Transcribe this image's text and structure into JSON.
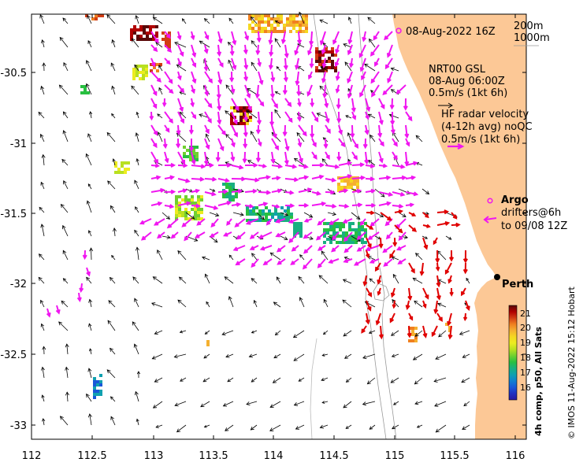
{
  "map": {
    "date_label": "08-Aug-2022 16Z",
    "isobath_labels": [
      "200m",
      "1000m"
    ],
    "x_ticks": [
      "112",
      "112.5",
      "113",
      "113.5",
      "114",
      "114.5",
      "115",
      "115.5",
      "116"
    ],
    "y_ticks": [
      "-30.5",
      "-31",
      "-31.5",
      "-32",
      "-32.5",
      "-33"
    ],
    "city_label": "Perth",
    "colors": {
      "land": "#fcc896",
      "current_arrows": "#000000",
      "hf_radar_arrows": "#f016f0",
      "argo_and_drifters": "#e00000",
      "isobath_lines": "#999999"
    }
  },
  "legend": {
    "nrt_lines": [
      "NRT00 GSL",
      "08-Aug 06:00Z",
      "0.5m/s (1kt 6h)"
    ],
    "hf_lines": [
      "HF radar velocity",
      "(4-12h avg) noQC",
      "0.5m/s (1kt 6h)"
    ],
    "argo_label": "Argo",
    "drifter_lines": [
      "drifters@6h",
      "to 09/08 12Z"
    ]
  },
  "colorbar": {
    "title": "4h comp, p50, All Sats",
    "ticks": [
      "21",
      "20",
      "19",
      "18",
      "17",
      "16"
    ],
    "stops": [
      "#5a0808",
      "#b00000",
      "#d23c14",
      "#f08020",
      "#f5b030",
      "#f5d820",
      "#ecec20",
      "#b8e020",
      "#70d030",
      "#28c040",
      "#18b080",
      "#10a0b0",
      "#1080d0",
      "#1858d8",
      "#2030c0",
      "#2818a0"
    ]
  },
  "credit": "© IMOS 11-Aug-2022 15:12 Hobart"
}
